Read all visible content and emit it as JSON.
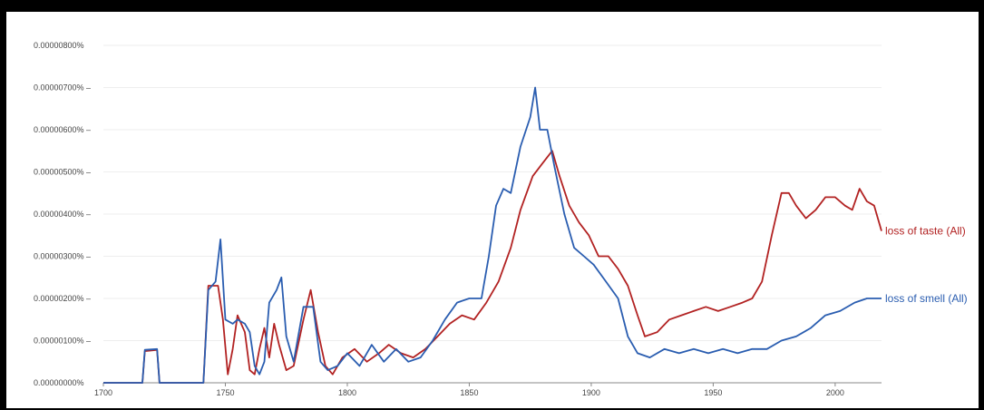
{
  "chart_data": {
    "type": "line",
    "title": "",
    "xlabel": "",
    "ylabel": "",
    "xlim": [
      1700,
      2019
    ],
    "ylim": [
      0,
      8e-06
    ],
    "grid": true,
    "legend": "inline-right",
    "x_ticks": [
      "1700",
      "1750",
      "1800",
      "1850",
      "1900",
      "1950",
      "2000"
    ],
    "x_tick_values": [
      1700,
      1750,
      1800,
      1850,
      1900,
      1950,
      2000
    ],
    "y_ticks": [
      "0.00000000%",
      "0.00000100%",
      "0.00000200%",
      "0.00000300%",
      "0.00000400%",
      "0.00000500%",
      "0.00000600%",
      "0.00000700%",
      "0.00000800%"
    ],
    "y_tick_values": [
      0,
      1e-06,
      2e-06,
      3e-06,
      4e-06,
      5e-06,
      6e-06,
      7e-06,
      8e-06
    ],
    "series": [
      {
        "name": "loss of taste (All)",
        "color": "#b22222",
        "points": [
          [
            1700,
            0
          ],
          [
            1716,
            0
          ],
          [
            1717,
            7.5e-07
          ],
          [
            1722,
            7.8e-07
          ],
          [
            1723,
            0
          ],
          [
            1741,
            0
          ],
          [
            1743,
            2.3e-06
          ],
          [
            1747,
            2.3e-06
          ],
          [
            1749,
            1.5e-06
          ],
          [
            1751,
            2e-07
          ],
          [
            1753,
            8e-07
          ],
          [
            1755,
            1.6e-06
          ],
          [
            1758,
            1.2e-06
          ],
          [
            1760,
            3e-07
          ],
          [
            1762,
            2e-07
          ],
          [
            1764,
            8e-07
          ],
          [
            1766,
            1.3e-06
          ],
          [
            1768,
            6e-07
          ],
          [
            1770,
            1.4e-06
          ],
          [
            1772,
            9e-07
          ],
          [
            1775,
            3e-07
          ],
          [
            1778,
            4e-07
          ],
          [
            1782,
            1.5e-06
          ],
          [
            1785,
            2.2e-06
          ],
          [
            1788,
            1.2e-06
          ],
          [
            1791,
            4e-07
          ],
          [
            1794,
            2e-07
          ],
          [
            1798,
            6e-07
          ],
          [
            1803,
            8e-07
          ],
          [
            1808,
            5e-07
          ],
          [
            1813,
            7e-07
          ],
          [
            1817,
            9e-07
          ],
          [
            1822,
            7e-07
          ],
          [
            1827,
            6e-07
          ],
          [
            1832,
            8e-07
          ],
          [
            1837,
            1.1e-06
          ],
          [
            1842,
            1.4e-06
          ],
          [
            1847,
            1.6e-06
          ],
          [
            1852,
            1.5e-06
          ],
          [
            1857,
            1.9e-06
          ],
          [
            1862,
            2.4e-06
          ],
          [
            1867,
            3.2e-06
          ],
          [
            1871,
            4.1e-06
          ],
          [
            1876,
            4.9e-06
          ],
          [
            1880,
            5.2e-06
          ],
          [
            1884,
            5.5e-06
          ],
          [
            1887,
            4.9e-06
          ],
          [
            1891,
            4.2e-06
          ],
          [
            1895,
            3.8e-06
          ],
          [
            1899,
            3.5e-06
          ],
          [
            1903,
            3e-06
          ],
          [
            1907,
            3e-06
          ],
          [
            1911,
            2.7e-06
          ],
          [
            1915,
            2.3e-06
          ],
          [
            1919,
            1.6e-06
          ],
          [
            1922,
            1.1e-06
          ],
          [
            1927,
            1.2e-06
          ],
          [
            1932,
            1.5e-06
          ],
          [
            1937,
            1.6e-06
          ],
          [
            1942,
            1.7e-06
          ],
          [
            1947,
            1.8e-06
          ],
          [
            1952,
            1.7e-06
          ],
          [
            1957,
            1.8e-06
          ],
          [
            1962,
            1.9e-06
          ],
          [
            1966,
            2e-06
          ],
          [
            1970,
            2.4e-06
          ],
          [
            1974,
            3.5e-06
          ],
          [
            1978,
            4.5e-06
          ],
          [
            1981,
            4.5e-06
          ],
          [
            1984,
            4.2e-06
          ],
          [
            1988,
            3.9e-06
          ],
          [
            1992,
            4.1e-06
          ],
          [
            1996,
            4.4e-06
          ],
          [
            2000,
            4.4e-06
          ],
          [
            2004,
            4.2e-06
          ],
          [
            2007,
            4.1e-06
          ],
          [
            2010,
            4.6e-06
          ],
          [
            2013,
            4.3e-06
          ],
          [
            2016,
            4.2e-06
          ],
          [
            2019,
            3.6e-06
          ]
        ]
      },
      {
        "name": "loss of smell (All)",
        "color": "#2a5db0",
        "points": [
          [
            1700,
            0
          ],
          [
            1716,
            0
          ],
          [
            1717,
            7.8e-07
          ],
          [
            1722,
            8e-07
          ],
          [
            1723,
            0
          ],
          [
            1741,
            0
          ],
          [
            1743,
            2.2e-06
          ],
          [
            1746,
            2.4e-06
          ],
          [
            1748,
            3.4e-06
          ],
          [
            1750,
            1.5e-06
          ],
          [
            1753,
            1.4e-06
          ],
          [
            1755,
            1.5e-06
          ],
          [
            1758,
            1.4e-06
          ],
          [
            1760,
            1.2e-06
          ],
          [
            1762,
            4e-07
          ],
          [
            1764,
            2e-07
          ],
          [
            1766,
            5e-07
          ],
          [
            1768,
            1.9e-06
          ],
          [
            1771,
            2.2e-06
          ],
          [
            1773,
            2.5e-06
          ],
          [
            1775,
            1.1e-06
          ],
          [
            1778,
            5e-07
          ],
          [
            1782,
            1.8e-06
          ],
          [
            1786,
            1.8e-06
          ],
          [
            1789,
            5e-07
          ],
          [
            1792,
            3e-07
          ],
          [
            1796,
            4e-07
          ],
          [
            1800,
            7e-07
          ],
          [
            1805,
            4e-07
          ],
          [
            1810,
            9e-07
          ],
          [
            1815,
            5e-07
          ],
          [
            1820,
            8e-07
          ],
          [
            1825,
            5e-07
          ],
          [
            1830,
            6e-07
          ],
          [
            1835,
            1e-06
          ],
          [
            1840,
            1.5e-06
          ],
          [
            1845,
            1.9e-06
          ],
          [
            1850,
            2e-06
          ],
          [
            1855,
            2e-06
          ],
          [
            1858,
            3e-06
          ],
          [
            1861,
            4.2e-06
          ],
          [
            1864,
            4.6e-06
          ],
          [
            1867,
            4.5e-06
          ],
          [
            1871,
            5.6e-06
          ],
          [
            1875,
            6.3e-06
          ],
          [
            1877,
            7e-06
          ],
          [
            1879,
            6e-06
          ],
          [
            1882,
            6e-06
          ],
          [
            1885,
            5.1e-06
          ],
          [
            1889,
            4e-06
          ],
          [
            1893,
            3.2e-06
          ],
          [
            1897,
            3e-06
          ],
          [
            1901,
            2.8e-06
          ],
          [
            1906,
            2.4e-06
          ],
          [
            1911,
            2e-06
          ],
          [
            1915,
            1.1e-06
          ],
          [
            1919,
            7e-07
          ],
          [
            1924,
            6e-07
          ],
          [
            1930,
            8e-07
          ],
          [
            1936,
            7e-07
          ],
          [
            1942,
            8e-07
          ],
          [
            1948,
            7e-07
          ],
          [
            1954,
            8e-07
          ],
          [
            1960,
            7e-07
          ],
          [
            1966,
            8e-07
          ],
          [
            1972,
            8e-07
          ],
          [
            1978,
            1e-06
          ],
          [
            1984,
            1.1e-06
          ],
          [
            1990,
            1.3e-06
          ],
          [
            1996,
            1.6e-06
          ],
          [
            2002,
            1.7e-06
          ],
          [
            2008,
            1.9e-06
          ],
          [
            2013,
            2e-06
          ],
          [
            2019,
            2e-06
          ]
        ]
      }
    ]
  }
}
